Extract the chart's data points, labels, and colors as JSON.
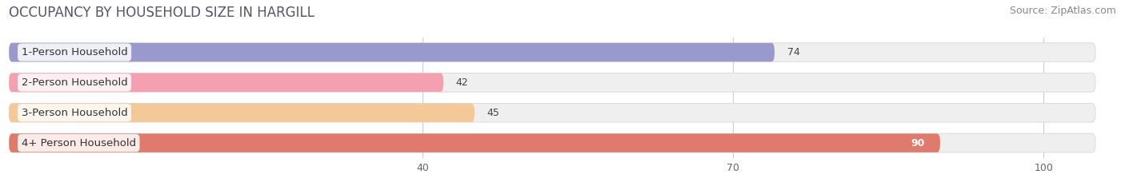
{
  "title": "OCCUPANCY BY HOUSEHOLD SIZE IN HARGILL",
  "source": "Source: ZipAtlas.com",
  "categories": [
    "1-Person Household",
    "2-Person Household",
    "3-Person Household",
    "4+ Person Household"
  ],
  "values": [
    74,
    42,
    45,
    90
  ],
  "bar_colors": [
    "#9999cc",
    "#f4a0b0",
    "#f5c898",
    "#e07b6b"
  ],
  "bar_label_colors": [
    "#333333",
    "#333333",
    "#333333",
    "#ffffff"
  ],
  "xlim": [
    0,
    107
  ],
  "xdata_min": 0,
  "xticks": [
    40,
    70,
    100
  ],
  "background_color": "#ffffff",
  "bar_bg_color": "#efefef",
  "bar_border_color": "#dddddd",
  "title_fontsize": 12,
  "source_fontsize": 9,
  "label_fontsize": 9.5,
  "tick_fontsize": 9,
  "value_fontsize": 9
}
